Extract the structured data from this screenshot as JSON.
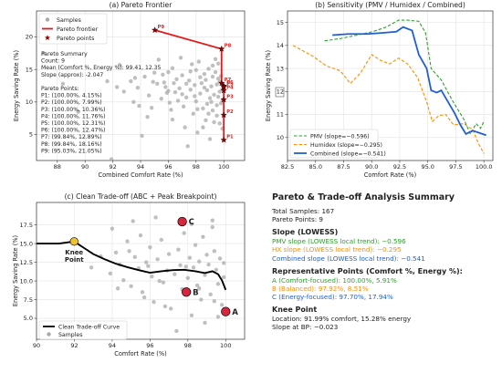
{
  "colors": {
    "samples": "#a9a9a9",
    "frontier": "#e31a1c",
    "pareto_points": "#8b0000",
    "green": "#2ca02c",
    "orange": "#ff8c00",
    "blue": "#1f5fd6",
    "knee": "#f2c12e",
    "rep_points": "#d7263d"
  },
  "chart_data": [
    {
      "type": "scatter",
      "title": "(a) Pareto Frontier",
      "xlabel": "Combined Comfort Rate (%)",
      "ylabel": "Energy Saving Rate (%)",
      "xlim": [
        86.5,
        101.5
      ],
      "ylim": [
        1.0,
        24.0
      ],
      "xticks": [
        88,
        90,
        92,
        94,
        96,
        98,
        100
      ],
      "yticks": [
        5,
        10,
        15,
        20
      ],
      "grid": true,
      "legend_position": "top-left",
      "legend": [
        "Samples",
        "Pareto frontier",
        "Pareto points"
      ],
      "summary_lines": [
        "Pareto Summary",
        "Count: 9",
        "Mean (Comfort %, Energy %): 99.41, 12.35",
        "Slope (approx): -2.047",
        "",
        "Pareto Points:",
        "P1: (100.00%, 4.15%)",
        "P2: (100.00%, 7.99%)",
        "P3: (100.00%, 10.36%)",
        "P4: (100.00%, 11.76%)",
        "P5: (100.00%, 12.31%)",
        "P6: (100.00%, 12.47%)",
        "P7: (99.84%, 12.89%)",
        "P8: (99.84%, 18.16%)",
        "P9: (95.03%, 21.05%)"
      ],
      "samples": [
        [
          87.0,
          17.5
        ],
        [
          88.4,
          12.8
        ],
        [
          89.5,
          8.5
        ],
        [
          91.9,
          1.2
        ],
        [
          91.6,
          13.2
        ],
        [
          92.3,
          12.3
        ],
        [
          92.5,
          15.7
        ],
        [
          93.3,
          13.2
        ],
        [
          93.5,
          10.0
        ],
        [
          93.6,
          13.7
        ],
        [
          94.3,
          13.9
        ],
        [
          94.6,
          11.0
        ],
        [
          94.5,
          7.7
        ],
        [
          94.1,
          4.8
        ],
        [
          93.8,
          12.2
        ],
        [
          95.0,
          14.5
        ],
        [
          95.2,
          12.8
        ],
        [
          95.5,
          10.5
        ],
        [
          95.7,
          13.0
        ],
        [
          95.9,
          11.4
        ],
        [
          96.0,
          14.6
        ],
        [
          96.1,
          9.9
        ],
        [
          96.2,
          8.8
        ],
        [
          96.3,
          15.2
        ],
        [
          96.3,
          7.3
        ],
        [
          96.5,
          11.5
        ],
        [
          96.6,
          13.5
        ],
        [
          96.8,
          12.1
        ],
        [
          97.0,
          14.1
        ],
        [
          97.1,
          9.3
        ],
        [
          97.2,
          6.1
        ],
        [
          97.3,
          10.7
        ],
        [
          97.5,
          13.3
        ],
        [
          97.6,
          11.9
        ],
        [
          97.7,
          15.8
        ],
        [
          97.8,
          8.2
        ],
        [
          97.9,
          12.6
        ],
        [
          98.0,
          14.9
        ],
        [
          98.0,
          10.1
        ],
        [
          98.1,
          5.3
        ],
        [
          98.2,
          16.2
        ],
        [
          98.3,
          11.3
        ],
        [
          98.4,
          12.9
        ],
        [
          98.5,
          9.0
        ],
        [
          98.6,
          14.3
        ],
        [
          98.7,
          13.4
        ],
        [
          98.7,
          7.2
        ],
        [
          98.8,
          11.8
        ],
        [
          98.9,
          15.1
        ],
        [
          99.0,
          10.6
        ],
        [
          99.1,
          12.4
        ],
        [
          99.2,
          13.9
        ],
        [
          99.2,
          8.7
        ],
        [
          99.3,
          11.1
        ],
        [
          99.4,
          16.6
        ],
        [
          99.4,
          14.6
        ],
        [
          99.5,
          9.5
        ],
        [
          99.5,
          12.7
        ],
        [
          99.6,
          10.8
        ],
        [
          99.6,
          13.6
        ],
        [
          99.7,
          6.7
        ],
        [
          99.7,
          11.6
        ],
        [
          99.8,
          14.0
        ],
        [
          99.8,
          9.8
        ],
        [
          99.9,
          12.0
        ],
        [
          99.9,
          10.3
        ],
        [
          99.9,
          5.9
        ],
        [
          95.3,
          16.5
        ],
        [
          94.8,
          9.1
        ],
        [
          96.9,
          16.8
        ],
        [
          97.4,
          3.2
        ],
        [
          98.5,
          6.1
        ],
        [
          99.0,
          4.3
        ],
        [
          99.5,
          7.9
        ],
        [
          96.4,
          12.9
        ],
        [
          95.6,
          14.2
        ],
        [
          97.0,
          11.2
        ],
        [
          98.3,
          13.8
        ],
        [
          98.8,
          9.7
        ],
        [
          99.2,
          15.6
        ],
        [
          99.6,
          15.9
        ],
        [
          99.3,
          6.9
        ],
        [
          98.1,
          8.9
        ],
        [
          97.6,
          14.7
        ],
        [
          96.7,
          10.2
        ],
        [
          95.8,
          12.3
        ],
        [
          94.9,
          13.1
        ],
        [
          93.9,
          9.4
        ],
        [
          92.8,
          11.6
        ],
        [
          97.9,
          10.9
        ],
        [
          98.6,
          12.2
        ],
        [
          99.1,
          10.0
        ],
        [
          99.7,
          13.1
        ],
        [
          98.9,
          8.2
        ],
        [
          96.0,
          11.7
        ],
        [
          97.3,
          12.8
        ]
      ],
      "frontier": [
        [
          95.03,
          21.05
        ],
        [
          99.84,
          18.16
        ],
        [
          99.84,
          12.89
        ],
        [
          100.0,
          12.47
        ],
        [
          100.0,
          12.31
        ],
        [
          100.0,
          11.76
        ],
        [
          100.0,
          10.36
        ],
        [
          100.0,
          7.99
        ],
        [
          100.0,
          4.15
        ]
      ],
      "pareto_points": [
        {
          "label": "P9",
          "x": 95.03,
          "y": 21.05
        },
        {
          "label": "P8",
          "x": 99.84,
          "y": 18.16
        },
        {
          "label": "P7",
          "x": 99.84,
          "y": 12.89
        },
        {
          "label": "P6",
          "x": 100.0,
          "y": 12.47
        },
        {
          "label": "P5",
          "x": 100.0,
          "y": 12.31
        },
        {
          "label": "P4",
          "x": 100.0,
          "y": 11.76
        },
        {
          "label": "P3",
          "x": 100.0,
          "y": 10.36
        },
        {
          "label": "P2",
          "x": 100.0,
          "y": 7.99
        },
        {
          "label": "P1",
          "x": 100.0,
          "y": 4.15
        }
      ]
    },
    {
      "type": "line",
      "title": "(b) Sensitivity (PMV / Humidex / Combined)",
      "xlabel": "Comfort Rate (%)",
      "ylabel": "Energy Saving Rate (%)",
      "xlim": [
        82.5,
        100.8
      ],
      "ylim": [
        9.0,
        15.5
      ],
      "xticks": [
        82.5,
        85.0,
        87.5,
        90.0,
        92.5,
        95.0,
        97.5,
        100.0
      ],
      "xticklabels": [
        "82.5",
        "85.0",
        "87.5",
        "90.0",
        "92.5",
        "95.0",
        "97.5",
        "100.0"
      ],
      "yticks": [
        10,
        11,
        12,
        13,
        14,
        15
      ],
      "grid": true,
      "legend_position": "bottom-left",
      "series": [
        {
          "name": "PMV (slope=−0.596)",
          "style": "dashed",
          "color": "#2ca02c",
          "points": [
            [
              85.8,
              14.2
            ],
            [
              87.2,
              14.3
            ],
            [
              88.7,
              14.45
            ],
            [
              90.1,
              14.6
            ],
            [
              91.3,
              14.8
            ],
            [
              92.4,
              15.1
            ],
            [
              93.2,
              15.1
            ],
            [
              94.2,
              15.05
            ],
            [
              94.8,
              14.55
            ],
            [
              95.3,
              13.0
            ],
            [
              96.2,
              12.5
            ],
            [
              97.2,
              11.6
            ],
            [
              98.2,
              10.8
            ],
            [
              98.8,
              10.15
            ],
            [
              99.3,
              10.6
            ],
            [
              99.7,
              10.4
            ],
            [
              100.0,
              10.7
            ]
          ]
        },
        {
          "name": "Humidex (slope=−0.295)",
          "style": "dashed",
          "color": "#ff8c00",
          "points": [
            [
              83.0,
              14.0
            ],
            [
              84.7,
              13.55
            ],
            [
              86.0,
              13.1
            ],
            [
              87.2,
              12.9
            ],
            [
              88.1,
              12.35
            ],
            [
              89.0,
              12.8
            ],
            [
              90.0,
              13.6
            ],
            [
              90.8,
              13.35
            ],
            [
              91.6,
              13.2
            ],
            [
              92.4,
              13.45
            ],
            [
              93.2,
              13.2
            ],
            [
              94.1,
              12.6
            ],
            [
              94.9,
              11.55
            ],
            [
              95.4,
              10.7
            ],
            [
              96.0,
              10.95
            ],
            [
              96.6,
              11.0
            ],
            [
              97.3,
              10.55
            ],
            [
              98.2,
              10.6
            ],
            [
              99.0,
              10.35
            ],
            [
              99.5,
              9.75
            ],
            [
              100.0,
              9.3
            ]
          ]
        },
        {
          "name": "Combined (slope=−0.541)",
          "style": "solid",
          "color": "#1f5fd6",
          "points": [
            [
              86.5,
              14.45
            ],
            [
              88.0,
              14.5
            ],
            [
              89.6,
              14.5
            ],
            [
              91.0,
              14.55
            ],
            [
              92.2,
              14.6
            ],
            [
              92.8,
              14.8
            ],
            [
              93.6,
              14.65
            ],
            [
              94.2,
              13.6
            ],
            [
              94.9,
              13.0
            ],
            [
              95.3,
              12.05
            ],
            [
              95.8,
              11.95
            ],
            [
              96.2,
              12.05
            ],
            [
              96.8,
              11.55
            ],
            [
              97.4,
              11.05
            ],
            [
              97.9,
              10.55
            ],
            [
              98.4,
              10.15
            ],
            [
              99.0,
              10.3
            ],
            [
              99.6,
              10.2
            ],
            [
              100.2,
              10.1
            ]
          ]
        }
      ]
    },
    {
      "type": "line",
      "title": "(c) Clean Trade-off (ABC + Peak Breakpoint)",
      "xlabel": "Comfort Rate (%)",
      "ylabel": "Energy Saving Rate (%)",
      "xlim": [
        90,
        101
      ],
      "ylim": [
        2.2,
        20.5
      ],
      "xticks": [
        90,
        92,
        94,
        96,
        98,
        100
      ],
      "yticks": [
        5.0,
        7.5,
        10.0,
        12.5,
        15.0,
        17.5
      ],
      "yticklabels": [
        "5.0",
        "7.5",
        "10.0",
        "12.5",
        "15.0",
        "17.5"
      ],
      "grid": true,
      "legend_position": "bottom-left",
      "legend": [
        "Clean Trade-off Curve",
        "Samples"
      ],
      "curve": [
        [
          90.0,
          15.0
        ],
        [
          90.6,
          15.0
        ],
        [
          91.2,
          15.0
        ],
        [
          91.99,
          15.28
        ],
        [
          92.4,
          14.6
        ],
        [
          93.0,
          13.6
        ],
        [
          93.6,
          12.9
        ],
        [
          94.2,
          12.3
        ],
        [
          94.8,
          11.85
        ],
        [
          95.4,
          11.45
        ],
        [
          96.0,
          11.1
        ],
        [
          96.6,
          11.3
        ],
        [
          97.2,
          11.45
        ],
        [
          97.8,
          11.5
        ],
        [
          98.4,
          11.3
        ],
        [
          98.9,
          11.05
        ],
        [
          99.3,
          11.3
        ],
        [
          99.6,
          10.9
        ],
        [
          99.8,
          10.1
        ],
        [
          100.0,
          8.8
        ]
      ],
      "samples": [
        [
          93.9,
          11.0
        ],
        [
          94.0,
          17.0
        ],
        [
          94.2,
          13.8
        ],
        [
          94.4,
          12.2
        ],
        [
          94.6,
          10.1
        ],
        [
          94.8,
          15.3
        ],
        [
          95.0,
          9.3
        ],
        [
          95.2,
          13.2
        ],
        [
          95.4,
          11.7
        ],
        [
          95.5,
          16.1
        ],
        [
          95.6,
          8.5
        ],
        [
          95.8,
          12.5
        ],
        [
          96.0,
          14.5
        ],
        [
          96.1,
          10.6
        ],
        [
          96.2,
          7.2
        ],
        [
          96.4,
          12.9
        ],
        [
          96.6,
          15.5
        ],
        [
          96.7,
          9.8
        ],
        [
          96.9,
          11.4
        ],
        [
          97.0,
          13.6
        ],
        [
          97.1,
          6.3
        ],
        [
          97.3,
          10.9
        ],
        [
          97.5,
          14.2
        ],
        [
          97.6,
          12.1
        ],
        [
          97.7,
          8.9
        ],
        [
          97.8,
          16.4
        ],
        [
          98.0,
          10.4
        ],
        [
          98.1,
          13.1
        ],
        [
          98.2,
          5.4
        ],
        [
          98.3,
          11.8
        ],
        [
          98.4,
          14.8
        ],
        [
          98.5,
          9.4
        ],
        [
          98.6,
          12.6
        ],
        [
          98.7,
          7.5
        ],
        [
          98.8,
          15.9
        ],
        [
          98.9,
          10.8
        ],
        [
          99.0,
          13.5
        ],
        [
          99.1,
          12.2
        ],
        [
          99.2,
          8.2
        ],
        [
          99.3,
          17.2
        ],
        [
          99.4,
          14.0
        ],
        [
          99.5,
          11.5
        ],
        [
          99.6,
          9.6
        ],
        [
          99.7,
          13.0
        ],
        [
          99.8,
          6.8
        ],
        [
          99.9,
          12.4
        ],
        [
          99.9,
          10.5
        ],
        [
          99.3,
          18.1
        ],
        [
          98.2,
          17.6
        ],
        [
          96.3,
          18.5
        ],
        [
          95.1,
          18.0
        ],
        [
          97.4,
          3.3
        ],
        [
          98.9,
          4.4
        ],
        [
          99.6,
          5.2
        ],
        [
          96.8,
          6.6
        ],
        [
          95.7,
          7.8
        ],
        [
          94.3,
          9.0
        ],
        [
          93.4,
          13.3
        ],
        [
          92.9,
          11.8
        ],
        [
          95.9,
          12.0
        ],
        [
          97.9,
          11.9
        ],
        [
          98.6,
          9.0
        ],
        [
          99.4,
          7.3
        ],
        [
          96.5,
          10.0
        ],
        [
          94.9,
          14.0
        ]
      ],
      "rep_points": [
        {
          "label": "A",
          "x": 100.0,
          "y": 5.91
        },
        {
          "label": "B",
          "x": 97.92,
          "y": 8.51
        },
        {
          "label": "C",
          "x": 97.7,
          "y": 17.94
        }
      ],
      "knee": {
        "x": 91.99,
        "y": 15.28,
        "label": "Knee\nPoint"
      }
    }
  ],
  "summary": {
    "title": "Pareto & Trade-off Analysis Summary",
    "total": "Total Samples: 167",
    "pareto": "Pareto Points: 9",
    "slope_head": "Slope (LOWESS)",
    "slope_pmv": "PMV slope (LOWESS local trend): −0.596",
    "slope_hx": "HX slope (LOWESS local trend): −0.295",
    "slope_comb": "Combined slope (LOWESS local trend): −0.541",
    "rep_head": "Representative Points (Comfort %, Energy %):",
    "rep_a": "A (Comfort-focused): 100.00%, 5.91%",
    "rep_b": "B (Balanced): 97.92%, 8.51%",
    "rep_c": "C (Energy-focused): 97.70%, 17.94%",
    "knee_head": "Knee Point",
    "knee_loc": "Location: 91.99% comfort, 15.28% energy",
    "knee_slope": "Slope at BP: −0.023"
  }
}
